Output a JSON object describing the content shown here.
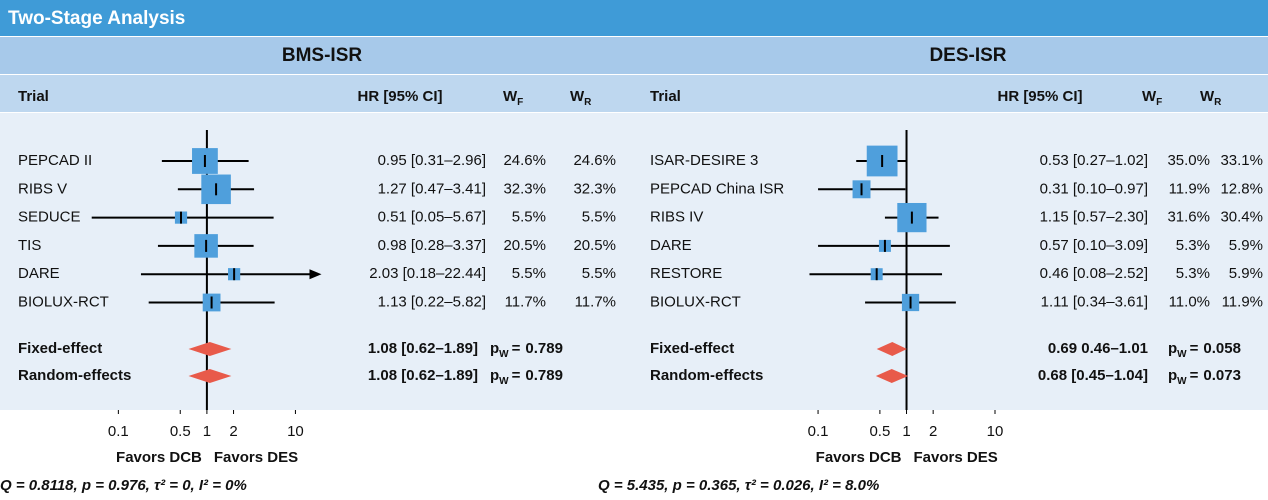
{
  "header": "Two-Stage Analysis",
  "columns": {
    "trial": "Trial",
    "hr": "HR [95% CI]",
    "weight": "W",
    "fixed": "F",
    "random": "R"
  },
  "p_symbol": "p",
  "p_subscript": "W",
  "equals": "=",
  "chart_data": [
    {
      "type": "forest",
      "title": "BMS-ISR",
      "xscale": "log",
      "xlim": [
        0.035,
        16
      ],
      "xticks": [
        0.1,
        0.5,
        1,
        2,
        10
      ],
      "grid": false,
      "xlabels": [
        "Favors DCB",
        "Favors DES"
      ],
      "color": "#4f9fdc",
      "summary_color": "#e85a4a",
      "categories": [
        "PEPCAD II",
        "RIBS V",
        "SEDUCE",
        "TIS",
        "DARE",
        "BIOLUX-RCT"
      ],
      "values": [
        0.95,
        1.27,
        0.51,
        0.98,
        2.03,
        1.13
      ],
      "ci_lower": [
        0.31,
        0.47,
        0.05,
        0.28,
        0.18,
        0.22
      ],
      "ci_upper": [
        2.96,
        3.41,
        5.67,
        3.37,
        22.44,
        5.82
      ],
      "value_labels": [
        "0.95 [0.31–2.96]",
        "1.27 [0.47–3.41]",
        "0.51 [0.05–5.67]",
        "0.98 [0.28–3.37]",
        "2.03 [0.18–22.44]",
        "1.13 [0.22–5.82]"
      ],
      "weights_fixed": {
        "values": [
          24.6,
          32.3,
          5.5,
          20.5,
          5.5,
          11.7
        ],
        "value_labels": [
          "24.6%",
          "32.3%",
          "5.5%",
          "20.5%",
          "5.5%",
          "11.7%"
        ]
      },
      "weights_random": {
        "values": [
          24.6,
          32.3,
          5.5,
          20.5,
          5.5,
          11.7
        ],
        "value_labels": [
          "24.6%",
          "32.3%",
          "5.5%",
          "20.5%",
          "5.5%",
          "11.7%"
        ]
      },
      "summary": [
        {
          "name": "Fixed-effect",
          "value": 1.08,
          "ci_lower": 0.62,
          "ci_upper": 1.89,
          "value_label": "1.08 [0.62–1.89]",
          "p_value": 0.789
        },
        {
          "name": "Random-effects",
          "value": 1.08,
          "ci_lower": 0.62,
          "ci_upper": 1.89,
          "value_label": "1.08 [0.62–1.89]",
          "p_value": 0.789
        }
      ],
      "heterogeneity": "Q = 0.8118, p = 0.976, τ² = 0, I² = 0%"
    },
    {
      "type": "forest",
      "title": "DES-ISR",
      "xscale": "log",
      "xlim": [
        0.075,
        12
      ],
      "xticks": [
        0.1,
        0.5,
        1,
        2,
        10
      ],
      "grid": false,
      "xlabels": [
        "Favors DCB",
        "Favors DES"
      ],
      "color": "#4f9fdc",
      "summary_color": "#e85a4a",
      "categories": [
        "ISAR-DESIRE 3",
        "PEPCAD China ISR",
        "RIBS IV",
        "DARE",
        "RESTORE",
        "BIOLUX-RCT"
      ],
      "values": [
        0.53,
        0.31,
        1.15,
        0.57,
        0.46,
        1.11
      ],
      "ci_lower": [
        0.27,
        0.1,
        0.57,
        0.1,
        0.08,
        0.34
      ],
      "ci_upper": [
        1.02,
        0.97,
        2.3,
        3.09,
        2.52,
        3.61
      ],
      "value_labels": [
        "0.53 [0.27–1.02]",
        "0.31 [0.10–0.97]",
        "1.15 [0.57–2.30]",
        "0.57 [0.10–3.09]",
        "0.46 [0.08–2.52]",
        "1.11 [0.34–3.61]"
      ],
      "weights_fixed": {
        "values": [
          35.0,
          11.9,
          31.6,
          5.3,
          5.3,
          11.0
        ],
        "value_labels": [
          "35.0%",
          "11.9%",
          "31.6%",
          "5.3%",
          "5.3%",
          "11.0%"
        ]
      },
      "weights_random": {
        "values": [
          33.1,
          12.8,
          30.4,
          5.9,
          5.9,
          11.9
        ],
        "value_labels": [
          "33.1%",
          "12.8%",
          "30.4%",
          "5.9%",
          "5.9%",
          "11.9%"
        ]
      },
      "summary": [
        {
          "name": "Fixed-effect",
          "value": 0.69,
          "ci_lower": 0.46,
          "ci_upper": 1.01,
          "value_label": "0.69 0.46–1.01",
          "p_value": 0.058
        },
        {
          "name": "Random-effects",
          "value": 0.68,
          "ci_lower": 0.45,
          "ci_upper": 1.04,
          "value_label": "0.68 [0.45–1.04]",
          "p_value": 0.073
        }
      ],
      "heterogeneity": "Q = 5.435, p = 0.365, τ² = 0.026, I² = 8.0%"
    }
  ]
}
